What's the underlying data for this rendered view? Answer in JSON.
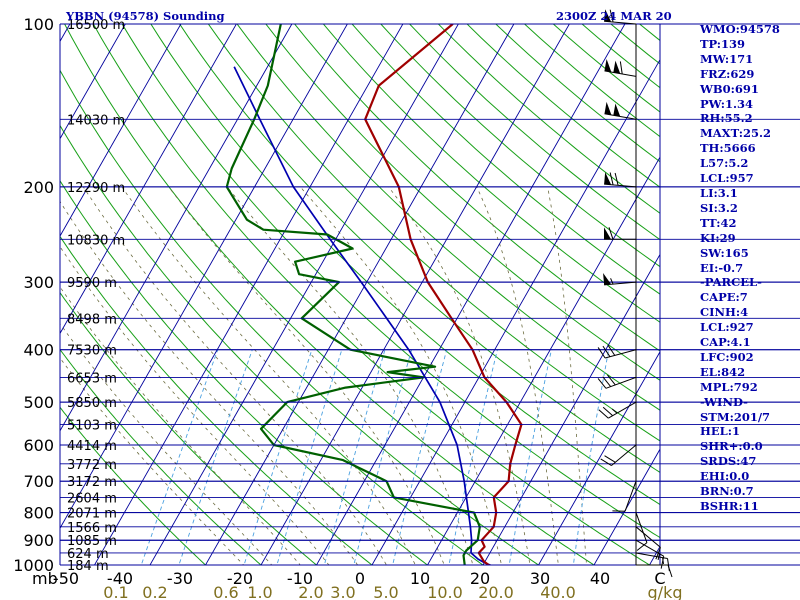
{
  "header": {
    "title": "YBBN (94578) Sounding",
    "time": "2300Z 24 MAR 20"
  },
  "indices": [
    "WMO:94578",
    "TP:139",
    "MW:171",
    "FRZ:629",
    "WB0:691",
    "PW:1.34",
    "RH:55.2",
    "MAXT:25.2",
    "TH:5666",
    "L57:5.2",
    "LCL:957",
    "LI:3.1",
    "SI:3.2",
    "TT:42",
    "KI:29",
    "SW:165",
    "EI:-0.7",
    "-PARCEL-",
    "CAPE:7",
    "CINH:4",
    "LCL:927",
    "CAP:4.1",
    "LFC:902",
    "EL:842",
    "MPL:792",
    "-WIND-",
    "STM:201/7",
    "HEL:1",
    "SHR+:0.0",
    "SRDS:47",
    "EHI:0.0",
    "BRN:0.7",
    "BSHR:11"
  ],
  "colors": {
    "label": "#0000a8",
    "isobar": "#00009c",
    "isotherm": "#00009c",
    "dry_adiabat": "#18a018",
    "moist_adiabat": "#6c6c40",
    "mixing_ratio": "#4aa0e0",
    "temperature": "#a00000",
    "dewpoint": "#006000",
    "parcel": "#0000b0",
    "axis_text": "#000000",
    "mixing_text": "#807020"
  },
  "chart_data": {
    "type": "skew-t",
    "x_axis_label": "mb",
    "temperature_ticks": [
      -50,
      -40,
      -30,
      -20,
      -10,
      0,
      10,
      20,
      30,
      40,
      50
    ],
    "temperature_tick_labels": [
      "-50",
      "-40",
      "-30",
      "-20",
      "-10",
      "0",
      "10",
      "20",
      "30",
      "40",
      "C"
    ],
    "pressure_ticks": [
      100,
      200,
      300,
      400,
      500,
      600,
      700,
      800,
      900,
      1000
    ],
    "height_levels": [
      {
        "p": 150,
        "label": "14030 m"
      },
      {
        "p": 200,
        "label": "12290 m"
      },
      {
        "p": 250,
        "label": "10830 m"
      },
      {
        "p": 300,
        "label": "9590 m"
      },
      {
        "p": 350,
        "label": "8498 m"
      },
      {
        "p": 400,
        "label": "7530 m"
      },
      {
        "p": 450,
        "label": "6653 m"
      },
      {
        "p": 500,
        "label": "5850 m"
      },
      {
        "p": 550,
        "label": "5103 m"
      },
      {
        "p": 600,
        "label": "4414 m"
      },
      {
        "p": 650,
        "label": "3772 m"
      },
      {
        "p": 700,
        "label": "3172 m"
      },
      {
        "p": 750,
        "label": "2604 m"
      },
      {
        "p": 800,
        "label": "2071 m"
      },
      {
        "p": 850,
        "label": "1566 m"
      },
      {
        "p": 900,
        "label": "1085 m"
      },
      {
        "p": 950,
        "label": "624 m"
      },
      {
        "p": 1000,
        "label": "184 m"
      }
    ],
    "top_height_label": "16500 m",
    "mixing_ratio_labels": [
      "0.1",
      "0.2",
      "0.6",
      "1.0",
      "2.0",
      "3.0",
      "5.0",
      "10.0",
      "20.0",
      "40.0",
      "g/kg"
    ],
    "mixing_ratio_values": [
      0.1,
      0.2,
      0.6,
      1.0,
      2.0,
      3.0,
      5.0,
      10.0,
      20.0,
      40.0
    ],
    "temperature_profile": [
      [
        1010,
        22.5
      ],
      [
        1000,
        21.0
      ],
      [
        985,
        19.8
      ],
      [
        950,
        18.0
      ],
      [
        925,
        18.4
      ],
      [
        900,
        17.2
      ],
      [
        850,
        18.0
      ],
      [
        800,
        17.0
      ],
      [
        750,
        15.0
      ],
      [
        700,
        16.0
      ],
      [
        650,
        14.5
      ],
      [
        600,
        13.5
      ],
      [
        550,
        12.5
      ],
      [
        500,
        7.5
      ],
      [
        450,
        1.0
      ],
      [
        400,
        -4.0
      ],
      [
        350,
        -11.0
      ],
      [
        300,
        -19.0
      ],
      [
        250,
        -26.5
      ],
      [
        200,
        -34.0
      ],
      [
        150,
        -47.0
      ],
      [
        130,
        -48.0
      ],
      [
        100,
        -41.0
      ]
    ],
    "dewpoint_profile": [
      [
        1010,
        17.0
      ],
      [
        960,
        15.5
      ],
      [
        940,
        15.5
      ],
      [
        900,
        16.5
      ],
      [
        850,
        15.5
      ],
      [
        800,
        13.0
      ],
      [
        750,
        -3.0
      ],
      [
        700,
        -6.0
      ],
      [
        640,
        -16.0
      ],
      [
        600,
        -30.0
      ],
      [
        560,
        -34.0
      ],
      [
        500,
        -32.0
      ],
      [
        470,
        -23.0
      ],
      [
        450,
        -10.0
      ],
      [
        440,
        -17.0
      ],
      [
        430,
        -9.0
      ],
      [
        400,
        -26.0
      ],
      [
        350,
        -38.0
      ],
      [
        300,
        -35.0
      ],
      [
        290,
        -43.0
      ],
      [
        275,
        -45.0
      ],
      [
        260,
        -36.0
      ],
      [
        245,
        -42.0
      ],
      [
        240,
        -54.0
      ],
      [
        230,
        -58.0
      ],
      [
        200,
        -65.0
      ],
      [
        185,
        -66.0
      ],
      [
        150,
        -67.0
      ],
      [
        130,
        -68.0
      ],
      [
        100,
        -72.0
      ]
    ],
    "parcel_profile": [
      [
        1010,
        22.5
      ],
      [
        990,
        20.0
      ],
      [
        975,
        18.5
      ],
      [
        950,
        16.6
      ],
      [
        900,
        15.4
      ],
      [
        850,
        13.8
      ],
      [
        800,
        12.0
      ],
      [
        700,
        8.0
      ],
      [
        600,
        3.0
      ],
      [
        500,
        -4.5
      ],
      [
        400,
        -15.5
      ],
      [
        300,
        -31.0
      ],
      [
        250,
        -41.0
      ],
      [
        200,
        -53.0
      ],
      [
        150,
        -66.0
      ],
      [
        120,
        -76.0
      ]
    ],
    "wind_barbs": [
      {
        "p": 1000,
        "dir": 90,
        "spd": 10
      },
      {
        "p": 950,
        "dir": 100,
        "spd": 15
      },
      {
        "p": 900,
        "dir": 120,
        "spd": 15
      },
      {
        "p": 850,
        "dir": 130,
        "spd": 10
      },
      {
        "p": 800,
        "dir": 160,
        "spd": 10
      },
      {
        "p": 700,
        "dir": 200,
        "spd": 10
      },
      {
        "p": 600,
        "dir": 230,
        "spd": 20
      },
      {
        "p": 500,
        "dir": 240,
        "spd": 25
      },
      {
        "p": 450,
        "dir": 250,
        "spd": 30
      },
      {
        "p": 400,
        "dir": 255,
        "spd": 30
      },
      {
        "p": 300,
        "dir": 265,
        "spd": 55
      },
      {
        "p": 250,
        "dir": 270,
        "spd": 60
      },
      {
        "p": 200,
        "dir": 275,
        "spd": 70
      },
      {
        "p": 150,
        "dir": 280,
        "spd": 100
      },
      {
        "p": 125,
        "dir": 280,
        "spd": 110
      },
      {
        "p": 100,
        "dir": 275,
        "spd": 60
      }
    ]
  }
}
